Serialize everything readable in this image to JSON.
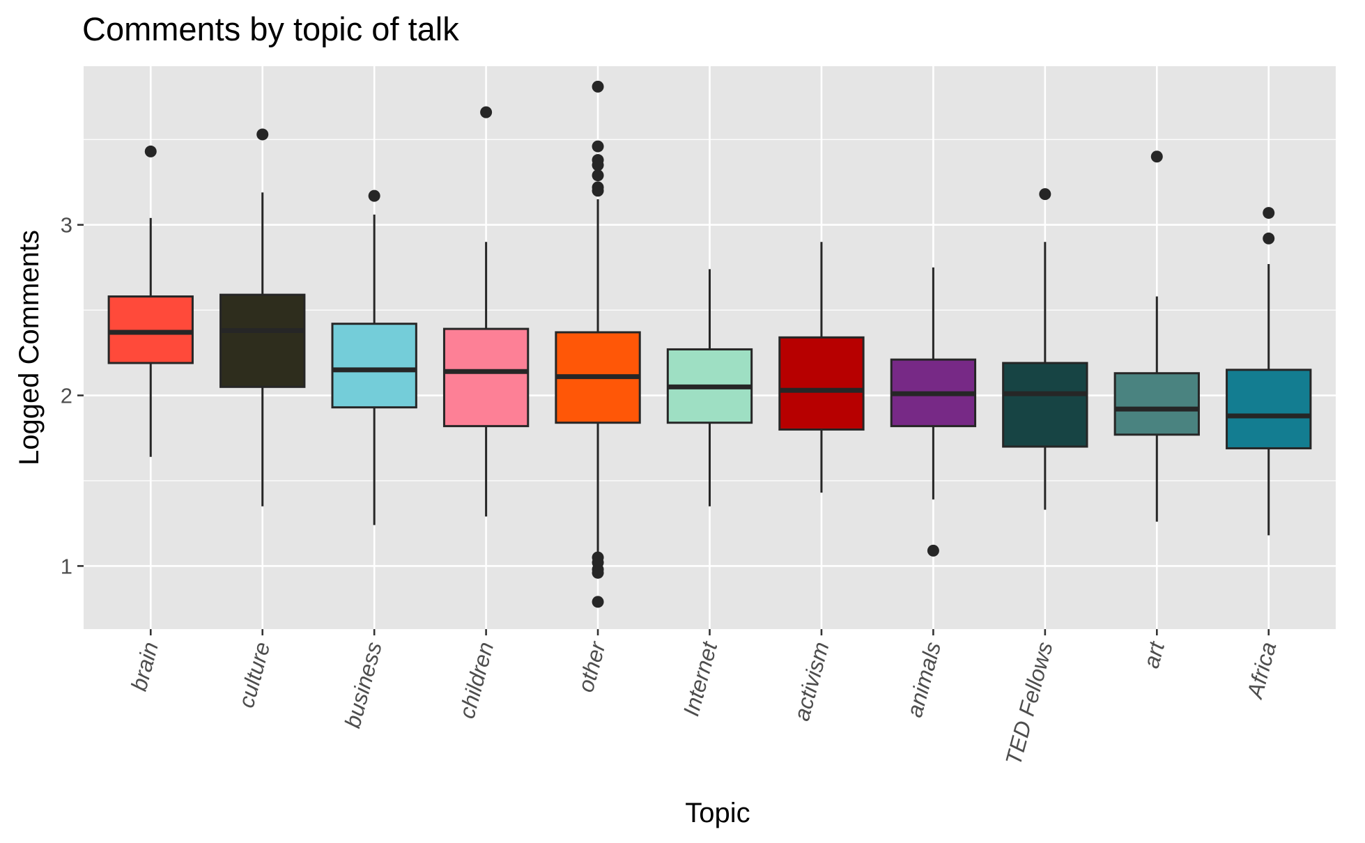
{
  "chart_data": {
    "type": "box",
    "title": "Comments by topic of talk",
    "xlabel": "Topic",
    "ylabel": "Logged Comments",
    "ylim": [
      0.63,
      3.93
    ],
    "y_ticks": [
      1,
      2,
      3
    ],
    "grid": true,
    "legend": "none",
    "panel_background": "#e5e5e5",
    "grid_color": "#ffffff",
    "box_outline_color": "#262626",
    "categories": [
      "brain",
      "culture",
      "business",
      "children",
      "other",
      "Internet",
      "activism",
      "animals",
      "TED Fellows",
      "art",
      "Africa"
    ],
    "boxes": [
      {
        "category": "brain",
        "color": "#ff4a3a",
        "lower_whisker": 1.64,
        "q1": 2.19,
        "median": 2.37,
        "q3": 2.58,
        "upper_whisker": 3.04,
        "outliers": [
          3.43
        ]
      },
      {
        "category": "culture",
        "color": "#2e2d1d",
        "lower_whisker": 1.35,
        "q1": 2.05,
        "median": 2.38,
        "q3": 2.59,
        "upper_whisker": 3.19,
        "outliers": [
          3.53
        ]
      },
      {
        "category": "business",
        "color": "#74cdd9",
        "lower_whisker": 1.24,
        "q1": 1.93,
        "median": 2.15,
        "q3": 2.42,
        "upper_whisker": 3.06,
        "outliers": [
          3.17
        ]
      },
      {
        "category": "children",
        "color": "#fd8096",
        "lower_whisker": 1.29,
        "q1": 1.82,
        "median": 2.14,
        "q3": 2.39,
        "upper_whisker": 2.9,
        "outliers": [
          3.66
        ]
      },
      {
        "category": "other",
        "color": "#ff5707",
        "lower_whisker": 1.05,
        "q1": 1.84,
        "median": 2.11,
        "q3": 2.37,
        "upper_whisker": 3.15,
        "outliers": [
          3.81,
          3.46,
          3.38,
          3.35,
          3.29,
          3.22,
          3.2,
          1.05,
          1.02,
          0.98,
          0.96,
          0.79
        ]
      },
      {
        "category": "Internet",
        "color": "#9edfc3",
        "lower_whisker": 1.35,
        "q1": 1.84,
        "median": 2.05,
        "q3": 2.27,
        "upper_whisker": 2.74,
        "outliers": []
      },
      {
        "category": "activism",
        "color": "#b70000",
        "lower_whisker": 1.43,
        "q1": 1.8,
        "median": 2.03,
        "q3": 2.34,
        "upper_whisker": 2.9,
        "outliers": []
      },
      {
        "category": "animals",
        "color": "#772986",
        "lower_whisker": 1.39,
        "q1": 1.82,
        "median": 2.01,
        "q3": 2.21,
        "upper_whisker": 2.75,
        "outliers": [
          1.09
        ]
      },
      {
        "category": "TED Fellows",
        "color": "#174444",
        "lower_whisker": 1.33,
        "q1": 1.7,
        "median": 2.01,
        "q3": 2.19,
        "upper_whisker": 2.9,
        "outliers": [
          3.18
        ]
      },
      {
        "category": "art",
        "color": "#4a8380",
        "lower_whisker": 1.26,
        "q1": 1.77,
        "median": 1.92,
        "q3": 2.13,
        "upper_whisker": 2.58,
        "outliers": [
          3.4
        ]
      },
      {
        "category": "Africa",
        "color": "#137d91",
        "lower_whisker": 1.18,
        "q1": 1.69,
        "median": 1.88,
        "q3": 2.15,
        "upper_whisker": 2.77,
        "outliers": [
          3.07,
          2.92
        ]
      }
    ]
  }
}
